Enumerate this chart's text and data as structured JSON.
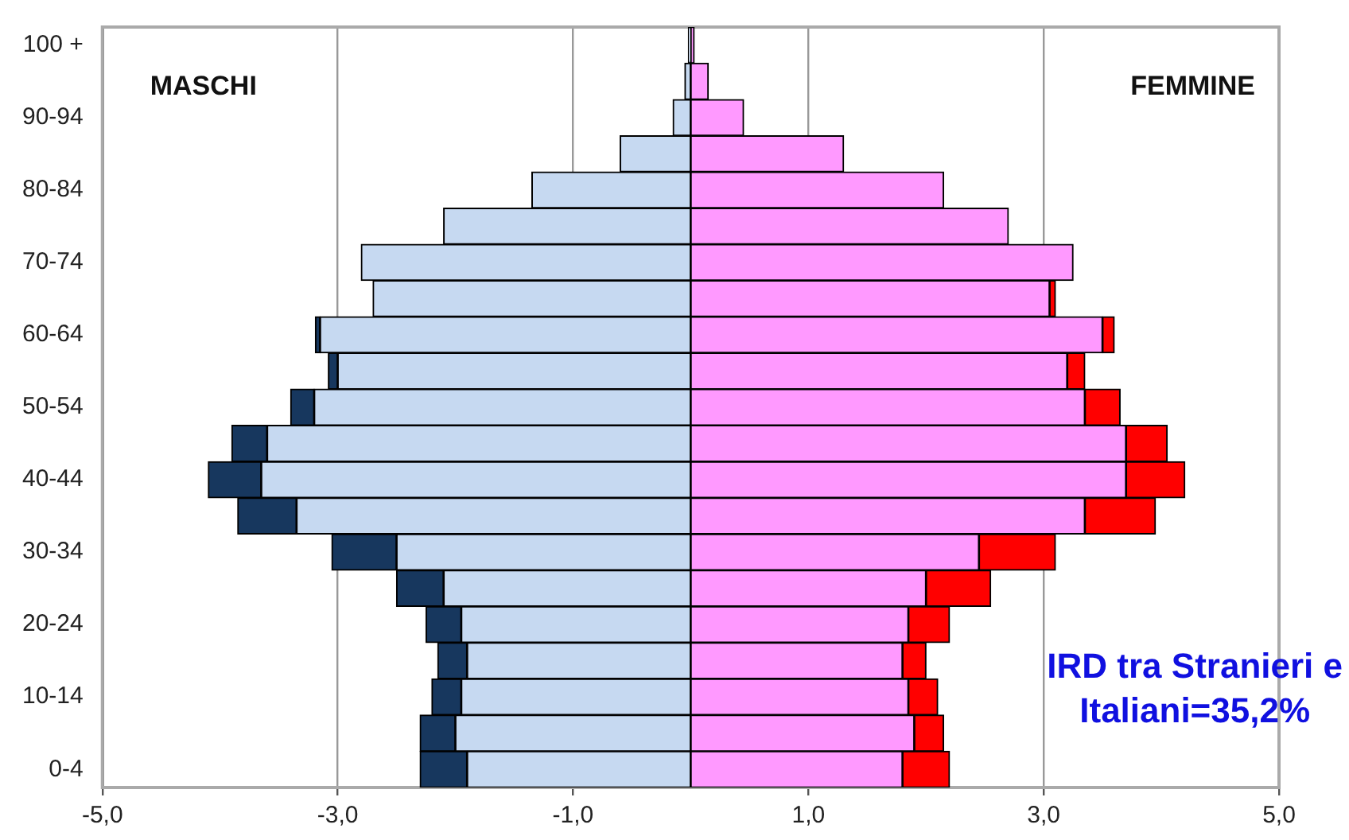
{
  "chart_data": {
    "type": "bar",
    "orientation": "horizontal",
    "stacked": true,
    "categories": [
      "100 +",
      null,
      "90-94",
      null,
      "80-84",
      null,
      "70-74",
      null,
      "60-64",
      null,
      "50-54",
      null,
      "40-44",
      null,
      "30-34",
      null,
      "20-24",
      null,
      "10-14",
      null,
      "0-4"
    ],
    "series": [
      {
        "color": "#c6d9f1",
        "values": [
          -0.02,
          -0.05,
          -0.15,
          -0.6,
          -1.35,
          -2.1,
          -2.8,
          -2.7,
          -3.15,
          -3.0,
          -3.2,
          -3.6,
          -3.65,
          -3.35,
          -2.5,
          -2.1,
          -1.95,
          -1.9,
          -1.95,
          -2.0,
          -1.9
        ]
      },
      {
        "color": "#17375e",
        "values": [
          0,
          0,
          0,
          0,
          0,
          0,
          0,
          0,
          -0.04,
          -0.08,
          -0.2,
          -0.3,
          -0.45,
          -0.5,
          -0.55,
          -0.4,
          -0.3,
          -0.25,
          -0.25,
          -0.3,
          -0.4
        ]
      },
      {
        "color": "#ff99ff",
        "values": [
          0.03,
          0.15,
          0.45,
          1.3,
          2.15,
          2.7,
          3.25,
          3.05,
          3.5,
          3.2,
          3.35,
          3.7,
          3.7,
          3.35,
          2.45,
          2.0,
          1.85,
          1.8,
          1.85,
          1.9,
          1.8
        ]
      },
      {
        "color": "#ff0000",
        "values": [
          0,
          0,
          0,
          0,
          0,
          0,
          0,
          0.05,
          0.1,
          0.15,
          0.3,
          0.35,
          0.5,
          0.6,
          0.65,
          0.55,
          0.35,
          0.2,
          0.25,
          0.25,
          0.4
        ]
      }
    ],
    "xlim": [
      -5,
      5
    ],
    "xticks": [
      {
        "value": -5,
        "label": "-5,0"
      },
      {
        "value": -3,
        "label": "-3,0"
      },
      {
        "value": -1,
        "label": "-1,0"
      },
      {
        "value": 1,
        "label": "1,0"
      },
      {
        "value": 3,
        "label": "3,0"
      },
      {
        "value": 5,
        "label": "5,0"
      }
    ],
    "grid": "x",
    "legend": false,
    "annotations": [
      "MASCHI",
      "FEMMINE",
      "IRD tra Stranieri e Italiani=35,2%"
    ]
  }
}
